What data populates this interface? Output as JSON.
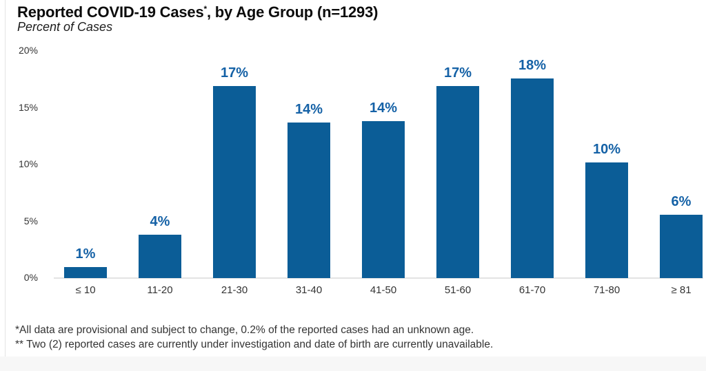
{
  "header": {
    "title_pre": "Reported COVID-19 Cases",
    "title_sup": "*",
    "title_post": ", by Age Group (n=1293)",
    "subtitle": "Percent of Cases"
  },
  "footnotes": [
    "*All data are provisional and subject to change, 0.2% of the reported cases had an unknown age.",
    "** Two (2) reported cases are currently under investigation and date of birth are currently unavailable."
  ],
  "chart_data": {
    "type": "bar",
    "title": "Reported COVID-19 Cases*, by Age Group (n=1293)",
    "subtitle": "Percent of Cases",
    "n_total": 1293,
    "categories": [
      "≤ 10",
      "11-20",
      "21-30",
      "31-40",
      "41-50",
      "51-60",
      "61-70",
      "71-80",
      "≥ 81"
    ],
    "values": [
      1,
      4,
      17,
      14,
      14,
      17,
      18,
      10,
      6
    ],
    "labels": [
      "1%",
      "4%",
      "17%",
      "14%",
      "14%",
      "17%",
      "18%",
      "10%",
      "6%"
    ],
    "values_plotted": [
      1.0,
      3.8,
      16.9,
      13.7,
      13.8,
      16.9,
      17.6,
      10.2,
      5.6
    ],
    "xlabel": "",
    "ylabel": "Percent of Cases",
    "ylim": [
      0,
      20
    ],
    "yticks": [
      {
        "value": 0,
        "label": "0%"
      },
      {
        "value": 5,
        "label": "5%"
      },
      {
        "value": 10,
        "label": "10%"
      },
      {
        "value": 15,
        "label": "15%"
      },
      {
        "value": 20,
        "label": "20%"
      }
    ],
    "grid": false,
    "legend": false,
    "colors": {
      "bar": "#0B5D97",
      "data_label": "#1461A6",
      "axis_line": "#E3E3E3",
      "tick_text": "#333333"
    }
  }
}
